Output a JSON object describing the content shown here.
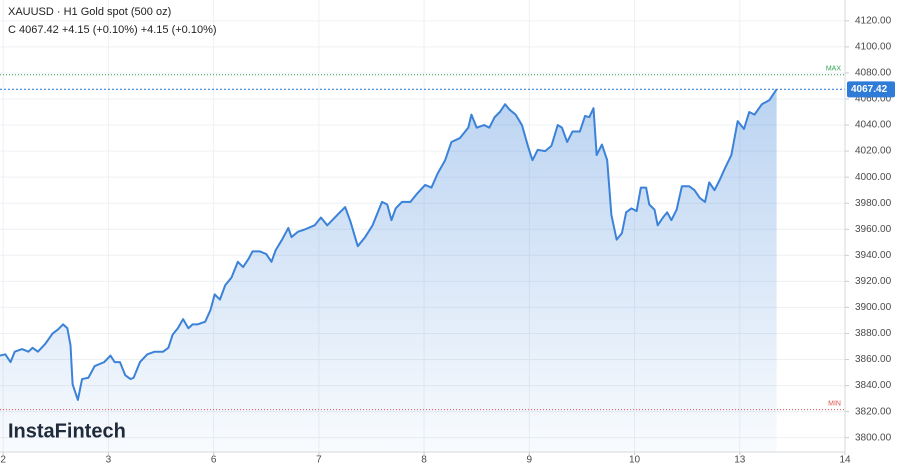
{
  "chart_data": {
    "type": "area",
    "title": "XAUUSD · H1 Gold spot (500 oz)",
    "subtitle": "C 4067.42 +4.15 (+0.10%) +4.15 (+0.10%)",
    "watermark": "InstaFintech",
    "color": "#3b82d8",
    "grid": true,
    "xlim": [
      -0.03,
      8.0
    ],
    "ylim": [
      3789,
      4136
    ],
    "xticks": [
      {
        "value": 0,
        "label": "2"
      },
      {
        "value": 1,
        "label": "3"
      },
      {
        "value": 2,
        "label": "6"
      },
      {
        "value": 3,
        "label": "7"
      },
      {
        "value": 4,
        "label": "8"
      },
      {
        "value": 5,
        "label": "9"
      },
      {
        "value": 6,
        "label": "10"
      },
      {
        "value": 7,
        "label": "13"
      },
      {
        "value": 8,
        "label": "14"
      }
    ],
    "yticks": [
      {
        "value": 3800,
        "label": "3800.00"
      },
      {
        "value": 3820,
        "label": "3820.00"
      },
      {
        "value": 3840,
        "label": "3840.00"
      },
      {
        "value": 3860,
        "label": "3860.00"
      },
      {
        "value": 3880,
        "label": "3880.00"
      },
      {
        "value": 3900,
        "label": "3900.00"
      },
      {
        "value": 3920,
        "label": "3920.00"
      },
      {
        "value": 3940,
        "label": "3940.00"
      },
      {
        "value": 3960,
        "label": "3960.00"
      },
      {
        "value": 3980,
        "label": "3980.00"
      },
      {
        "value": 4000,
        "label": "4000.00"
      },
      {
        "value": 4020,
        "label": "4020.00"
      },
      {
        "value": 4040,
        "label": "4040.00"
      },
      {
        "value": 4060,
        "label": "4060.00"
      },
      {
        "value": 4080,
        "label": "4080.00"
      },
      {
        "value": 4100,
        "label": "4100.00"
      },
      {
        "value": 4120,
        "label": "4120.00"
      }
    ],
    "max_line": {
      "value": 4078.6,
      "label": "MAX",
      "color": "#2ea44f"
    },
    "min_line": {
      "value": 3821.5,
      "label": "MIN",
      "color": "#e0524a"
    },
    "x": [
      -0.03,
      0.02,
      0.07,
      0.11,
      0.18,
      0.24,
      0.28,
      0.33,
      0.4,
      0.47,
      0.52,
      0.57,
      0.61,
      0.64,
      0.66,
      0.71,
      0.75,
      0.81,
      0.87,
      0.96,
      1.02,
      1.06,
      1.11,
      1.16,
      1.21,
      1.24,
      1.3,
      1.37,
      1.44,
      1.52,
      1.57,
      1.61,
      1.66,
      1.71,
      1.76,
      1.8,
      1.85,
      1.92,
      1.97,
      2.01,
      2.06,
      2.11,
      2.17,
      2.23,
      2.28,
      2.33,
      2.37,
      2.44,
      2.5,
      2.55,
      2.59,
      2.65,
      2.71,
      2.74,
      2.8,
      2.87,
      2.96,
      3.02,
      3.08,
      3.14,
      3.2,
      3.25,
      3.3,
      3.37,
      3.44,
      3.51,
      3.56,
      3.6,
      3.65,
      3.69,
      3.73,
      3.79,
      3.87,
      3.93,
      4.01,
      4.07,
      4.13,
      4.2,
      4.26,
      4.34,
      4.42,
      4.45,
      4.5,
      4.57,
      4.62,
      4.67,
      4.72,
      4.77,
      4.81,
      4.87,
      4.93,
      4.99,
      5.03,
      5.08,
      5.15,
      5.21,
      5.27,
      5.31,
      5.36,
      5.41,
      5.48,
      5.53,
      5.57,
      5.61,
      5.64,
      5.69,
      5.74,
      5.78,
      5.83,
      5.88,
      5.92,
      5.97,
      6.02,
      6.06,
      6.11,
      6.14,
      6.19,
      6.22,
      6.27,
      6.31,
      6.35,
      6.4,
      6.45,
      6.52,
      6.57,
      6.62,
      6.67,
      6.71,
      6.76,
      6.81,
      6.86,
      6.92,
      6.98,
      7.04,
      7.09,
      7.14,
      7.21,
      7.28,
      7.35
    ],
    "values": [
      3863,
      3864,
      3858,
      3866,
      3868,
      3866,
      3869,
      3866,
      3872,
      3880,
      3883,
      3887,
      3884,
      3871,
      3841,
      3829,
      3845,
      3846,
      3855,
      3858,
      3863,
      3858,
      3858,
      3848,
      3845,
      3846,
      3858,
      3864,
      3866,
      3866,
      3869,
      3879,
      3884,
      3891,
      3884,
      3887,
      3887,
      3889,
      3898,
      3910,
      3906,
      3917,
      3923,
      3935,
      3931,
      3937,
      3943,
      3943,
      3941,
      3935,
      3944,
      3952,
      3961,
      3954,
      3958,
      3960,
      3963,
      3969,
      3963,
      3968,
      3973,
      3977,
      3966,
      3947,
      3954,
      3963,
      3973,
      3981,
      3979,
      3967,
      3976,
      3981,
      3981,
      3987,
      3994,
      3992,
      4003,
      4013,
      4027,
      4030,
      4038,
      4048,
      4038,
      4040,
      4038,
      4046,
      4050,
      4056,
      4052,
      4048,
      4040,
      4023,
      4013,
      4021,
      4020,
      4024,
      4040,
      4038,
      4027,
      4035,
      4035,
      4047,
      4046,
      4053,
      4017,
      4025,
      4013,
      3971,
      3952,
      3957,
      3973,
      3976,
      3974,
      3992,
      3992,
      3979,
      3975,
      3963,
      3969,
      3973,
      3967,
      3975,
      3993,
      3993,
      3990,
      3984,
      3981,
      3996,
      3990,
      3998,
      4007,
      4017,
      4043,
      4037,
      4050,
      4048,
      4056,
      4059,
      4067.42
    ]
  }
}
